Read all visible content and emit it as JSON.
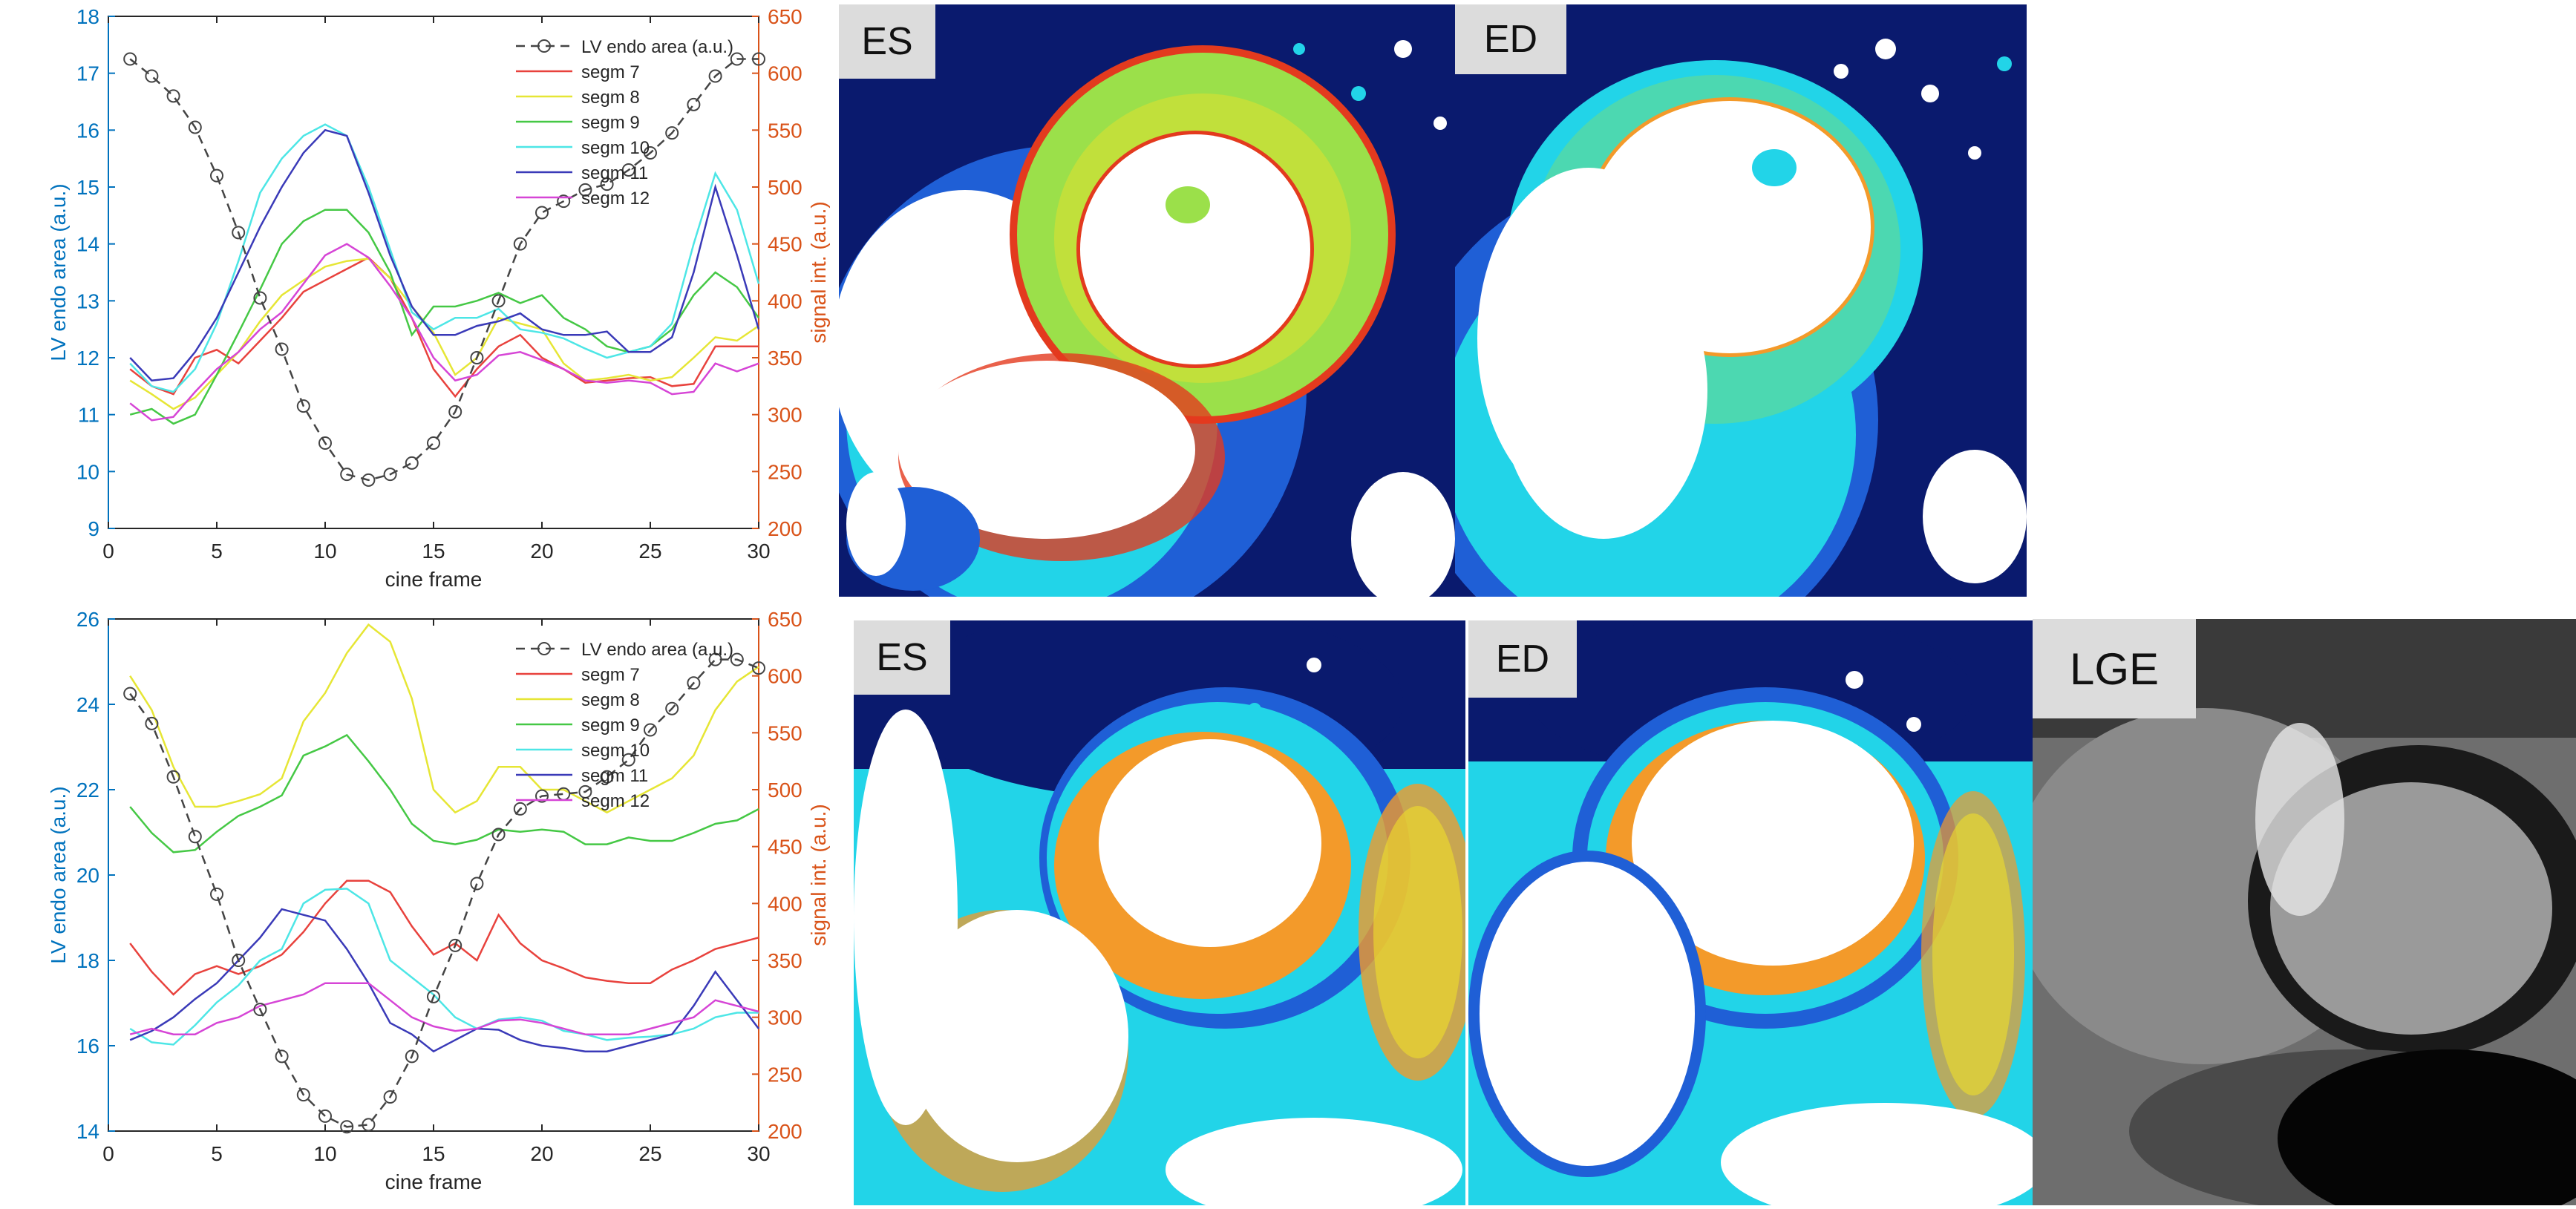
{
  "chart_data": [
    {
      "type": "line",
      "xlabel": "cine frame",
      "ylabel_left": "LV endo area (a.u.)",
      "ylabel_right": "signal int. (a.u.)",
      "xlim": [
        0,
        30
      ],
      "ylim_left": [
        9,
        18
      ],
      "ylim_right": [
        200,
        650
      ],
      "xticks": [
        0,
        5,
        10,
        15,
        20,
        25,
        30
      ],
      "yticks_left": [
        9,
        10,
        11,
        12,
        13,
        14,
        15,
        16,
        17,
        18
      ],
      "yticks_right": [
        200,
        250,
        300,
        350,
        400,
        450,
        500,
        550,
        600,
        650
      ],
      "grid": false,
      "legend_position": "top-right",
      "x": [
        1,
        2,
        3,
        4,
        5,
        6,
        7,
        8,
        9,
        10,
        11,
        12,
        13,
        14,
        15,
        16,
        17,
        18,
        19,
        20,
        21,
        22,
        23,
        24,
        25,
        26,
        27,
        28,
        29,
        30
      ],
      "area_series": {
        "name": "LV endo area (a.u.)",
        "axis": "left",
        "color": "#444444",
        "values": [
          17.25,
          16.95,
          16.6,
          16.05,
          15.2,
          14.2,
          13.05,
          12.15,
          11.15,
          10.5,
          9.95,
          9.85,
          9.95,
          10.15,
          10.5,
          11.05,
          12.0,
          13.0,
          14.0,
          14.55,
          14.75,
          14.95,
          15.05,
          15.3,
          15.6,
          15.95,
          16.45,
          16.95,
          17.25,
          17.25
        ]
      },
      "series": [
        {
          "name": "segm 7",
          "axis": "right",
          "color": "#e8423d",
          "values": [
            340,
            325,
            318,
            350,
            357,
            345,
            365,
            385,
            408,
            418,
            428,
            438,
            420,
            385,
            340,
            316,
            340,
            360,
            370,
            350,
            340,
            328,
            330,
            332,
            333,
            325,
            327,
            360,
            360,
            360
          ]
        },
        {
          "name": "segm 8",
          "axis": "right",
          "color": "#e6e635",
          "values": [
            330,
            318,
            305,
            315,
            335,
            355,
            382,
            405,
            418,
            430,
            435,
            437,
            420,
            395,
            372,
            335,
            350,
            385,
            380,
            375,
            345,
            330,
            332,
            335,
            330,
            333,
            350,
            368,
            365,
            378
          ]
        },
        {
          "name": "segm 9",
          "axis": "right",
          "color": "#45c845",
          "values": [
            300,
            305,
            292,
            300,
            335,
            372,
            410,
            450,
            470,
            480,
            480,
            460,
            425,
            370,
            395,
            395,
            400,
            407,
            398,
            405,
            385,
            375,
            360,
            355,
            360,
            375,
            405,
            425,
            412,
            385
          ]
        },
        {
          "name": "segm 10",
          "axis": "right",
          "color": "#4de6e6",
          "values": [
            345,
            325,
            320,
            340,
            380,
            435,
            495,
            525,
            545,
            555,
            545,
            500,
            445,
            390,
            375,
            385,
            385,
            393,
            375,
            372,
            367,
            358,
            350,
            355,
            360,
            380,
            450,
            512,
            480,
            415
          ]
        },
        {
          "name": "segm 11",
          "axis": "right",
          "color": "#3a3ab8",
          "values": [
            350,
            330,
            332,
            355,
            385,
            425,
            465,
            500,
            530,
            550,
            545,
            495,
            440,
            395,
            370,
            370,
            378,
            382,
            389,
            375,
            370,
            370,
            373,
            355,
            355,
            368,
            425,
            500,
            440,
            375
          ]
        },
        {
          "name": "segm 12",
          "axis": "right",
          "color": "#d645d6",
          "values": [
            310,
            295,
            298,
            320,
            340,
            355,
            375,
            390,
            415,
            440,
            450,
            438,
            413,
            385,
            350,
            330,
            335,
            352,
            355,
            348,
            340,
            330,
            328,
            330,
            328,
            318,
            320,
            345,
            338,
            345
          ]
        }
      ]
    },
    {
      "type": "line",
      "xlabel": "cine frame",
      "ylabel_left": "LV endo area (a.u.)",
      "ylabel_right": "signal int. (a.u.)",
      "xlim": [
        0,
        30
      ],
      "ylim_left": [
        14,
        26
      ],
      "ylim_right": [
        200,
        650
      ],
      "xticks": [
        0,
        5,
        10,
        15,
        20,
        25,
        30
      ],
      "yticks_left": [
        14,
        16,
        18,
        20,
        22,
        24,
        26
      ],
      "yticks_right": [
        200,
        250,
        300,
        350,
        400,
        450,
        500,
        550,
        600,
        650
      ],
      "grid": false,
      "legend_position": "top-right",
      "x": [
        1,
        2,
        3,
        4,
        5,
        6,
        7,
        8,
        9,
        10,
        11,
        12,
        13,
        14,
        15,
        16,
        17,
        18,
        19,
        20,
        21,
        22,
        23,
        24,
        25,
        26,
        27,
        28,
        29,
        30
      ],
      "area_series": {
        "name": "LV endo area (a.u.)",
        "axis": "left",
        "color": "#444444",
        "values": [
          24.25,
          23.55,
          22.3,
          20.9,
          19.55,
          18.0,
          16.85,
          15.75,
          14.85,
          14.35,
          14.1,
          14.15,
          14.8,
          15.75,
          17.15,
          18.35,
          19.8,
          20.95,
          21.55,
          21.85,
          21.9,
          21.95,
          22.3,
          22.7,
          23.4,
          23.9,
          24.5,
          25.05,
          25.05,
          24.85
        ]
      },
      "series": [
        {
          "name": "segm 7",
          "axis": "right",
          "color": "#e8423d",
          "values": [
            365,
            340,
            320,
            338,
            345,
            338,
            345,
            355,
            375,
            400,
            420,
            420,
            410,
            380,
            355,
            365,
            350,
            390,
            365,
            350,
            343,
            335,
            332,
            330,
            330,
            342,
            350,
            360,
            365,
            370
          ]
        },
        {
          "name": "segm 8",
          "axis": "right",
          "color": "#e6e635",
          "values": [
            600,
            570,
            520,
            485,
            485,
            490,
            496,
            510,
            560,
            585,
            620,
            645,
            630,
            580,
            500,
            480,
            490,
            520,
            520,
            500,
            500,
            490,
            480,
            490,
            500,
            510,
            530,
            570,
            595,
            608
          ]
        },
        {
          "name": "segm 9",
          "axis": "right",
          "color": "#45c845",
          "values": [
            485,
            462,
            445,
            447,
            463,
            477,
            485,
            495,
            530,
            538,
            548,
            525,
            500,
            470,
            455,
            452,
            456,
            465,
            463,
            465,
            463,
            452,
            452,
            458,
            455,
            455,
            462,
            470,
            473,
            483
          ]
        },
        {
          "name": "segm 10",
          "axis": "right",
          "color": "#4de6e6",
          "values": [
            290,
            278,
            276,
            293,
            313,
            328,
            350,
            360,
            400,
            412,
            413,
            400,
            350,
            335,
            320,
            300,
            290,
            298,
            300,
            297,
            288,
            285,
            280,
            282,
            283,
            285,
            290,
            300,
            304,
            304
          ]
        },
        {
          "name": "segm 11",
          "axis": "right",
          "color": "#3a3ab8",
          "values": [
            280,
            288,
            300,
            316,
            330,
            350,
            370,
            395,
            390,
            385,
            360,
            330,
            295,
            285,
            270,
            280,
            290,
            289,
            280,
            275,
            273,
            270,
            270,
            275,
            280,
            285,
            310,
            340,
            315,
            290
          ]
        },
        {
          "name": "segm 12",
          "axis": "right",
          "color": "#d645d6",
          "values": [
            285,
            290,
            285,
            285,
            295,
            300,
            310,
            315,
            320,
            330,
            330,
            330,
            315,
            300,
            292,
            288,
            290,
            297,
            298,
            295,
            290,
            285,
            285,
            285,
            290,
            295,
            300,
            315,
            310,
            305
          ]
        }
      ]
    }
  ],
  "panels": [
    {
      "label": "ES",
      "style": "ES-top"
    },
    {
      "label": "ED",
      "style": "ED-top"
    },
    {
      "label": "ES",
      "style": "ES-bottom"
    },
    {
      "label": "ED",
      "style": "ED-bottom"
    },
    {
      "label": "LGE",
      "style": "LGE"
    }
  ],
  "colors": {
    "left_axis": "#0072bd",
    "right_axis": "#d95319",
    "area_line": "#444444",
    "map_white": "#ffffff",
    "map_dark_blue": "#0a1a6e",
    "map_blue": "#1f5fd6",
    "map_cyan": "#22d4e8",
    "map_green": "#9be04a",
    "map_yellow": "#f0e02a",
    "map_orange": "#f39a2a",
    "map_red": "#e33a1e"
  }
}
